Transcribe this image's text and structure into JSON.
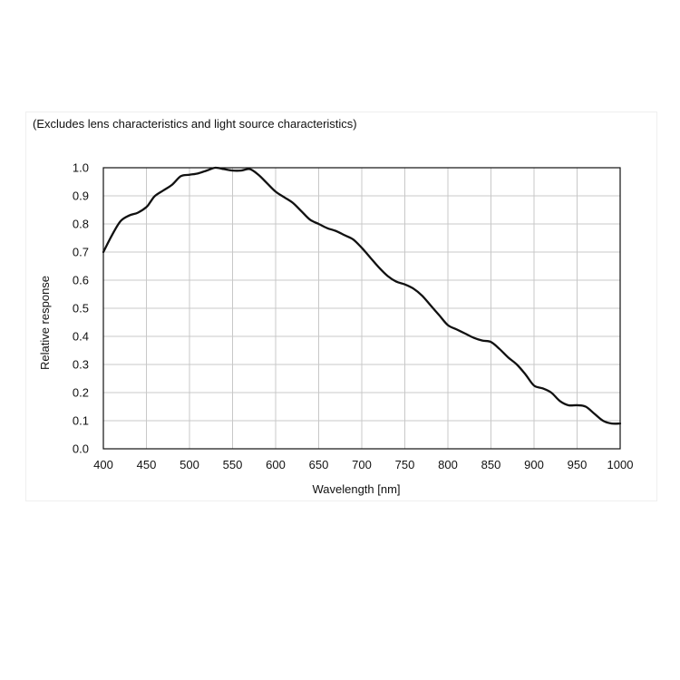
{
  "chart_data": {
    "type": "line",
    "note": "(Excludes lens characteristics and light source characteristics)",
    "xlabel": "Wavelength [nm]",
    "ylabel": "Relative response",
    "xlim": [
      400,
      1000
    ],
    "ylim": [
      0,
      1.0
    ],
    "xticks": [
      "400",
      "450",
      "500",
      "550",
      "600",
      "650",
      "700",
      "750",
      "800",
      "850",
      "900",
      "950",
      "1000"
    ],
    "yticks": [
      "0.0",
      "0.1",
      "0.2",
      "0.3",
      "0.4",
      "0.5",
      "0.6",
      "0.7",
      "0.8",
      "0.9",
      "1.0"
    ],
    "grid": true,
    "line_color": "#111111",
    "series": [
      {
        "x": [
          400,
          410,
          420,
          430,
          440,
          450,
          455,
          460,
          470,
          480,
          490,
          500,
          510,
          520,
          530,
          540,
          550,
          560,
          570,
          580,
          590,
          600,
          610,
          620,
          630,
          640,
          650,
          660,
          670,
          680,
          690,
          700,
          710,
          720,
          730,
          740,
          750,
          760,
          770,
          780,
          790,
          800,
          810,
          820,
          830,
          840,
          850,
          860,
          870,
          880,
          890,
          900,
          910,
          920,
          930,
          940,
          950,
          960,
          970,
          980,
          990,
          1000
        ],
        "y": [
          0.7,
          0.76,
          0.81,
          0.83,
          0.84,
          0.86,
          0.88,
          0.9,
          0.92,
          0.94,
          0.97,
          0.975,
          0.98,
          0.99,
          1.0,
          0.995,
          0.99,
          0.99,
          0.995,
          0.975,
          0.945,
          0.915,
          0.895,
          0.875,
          0.845,
          0.815,
          0.8,
          0.785,
          0.775,
          0.76,
          0.745,
          0.715,
          0.68,
          0.645,
          0.615,
          0.595,
          0.585,
          0.57,
          0.545,
          0.51,
          0.475,
          0.44,
          0.425,
          0.41,
          0.395,
          0.385,
          0.38,
          0.355,
          0.325,
          0.3,
          0.265,
          0.225,
          0.215,
          0.2,
          0.17,
          0.155,
          0.155,
          0.15,
          0.125,
          0.1,
          0.09,
          0.09
        ]
      }
    ]
  }
}
